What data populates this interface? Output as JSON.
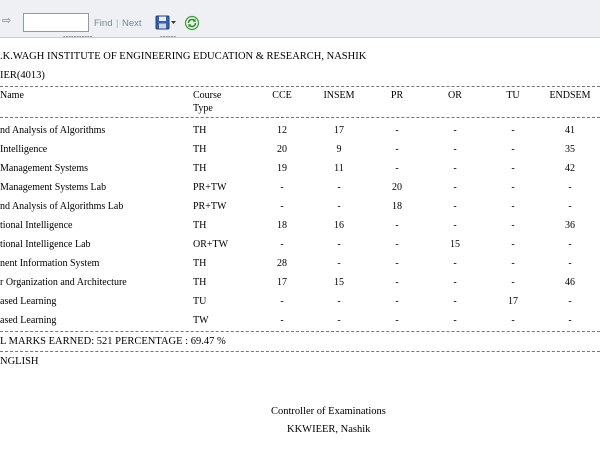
{
  "toolbar": {
    "nav_glyph": "⇨",
    "search_value": "",
    "search_placeholder": "",
    "find_label": "Find",
    "separator": "|",
    "next_label": "Next",
    "cut_text_1": "-----------",
    "cut_text_2": "------"
  },
  "header": {
    "institute": ".K.WAGH INSTITUTE OF ENGINEERING EDUCATION & RESEARCH, NASHIK",
    "semester": "IER(4013)"
  },
  "table": {
    "headers": {
      "name": "Name",
      "course_type_line1": "Course",
      "course_type_line2": "Type",
      "cce": "CCE",
      "insem": "INSEM",
      "pr": "PR",
      "or": "OR",
      "tu": "TU",
      "endsem": "ENDSEM"
    },
    "rows": [
      {
        "name": "nd Analysis of Algorithms",
        "type": "TH",
        "cce": "12",
        "insem": "17",
        "pr": "-",
        "or": "-",
        "tu": "-",
        "endsem": "41"
      },
      {
        "name": " Intelligence",
        "type": "TH",
        "cce": "20",
        "insem": "9",
        "pr": "-",
        "or": "-",
        "tu": "-",
        "endsem": "35"
      },
      {
        "name": " Management Systems",
        "type": "TH",
        "cce": "19",
        "insem": "11",
        "pr": "-",
        "or": "-",
        "tu": "-",
        "endsem": "42"
      },
      {
        "name": " Management Systems Lab",
        "type": "PR+TW",
        "cce": "-",
        "insem": "-",
        "pr": "20",
        "or": "-",
        "tu": "-",
        "endsem": "-"
      },
      {
        "name": "nd Analysis of Algorithms Lab",
        "type": "PR+TW",
        "cce": "-",
        "insem": "-",
        "pr": "18",
        "or": "-",
        "tu": "-",
        "endsem": "-"
      },
      {
        "name": "tional Intelligence",
        "type": "TH",
        "cce": "18",
        "insem": "16",
        "pr": "-",
        "or": "-",
        "tu": "-",
        "endsem": "36"
      },
      {
        "name": "tional Intelligence Lab",
        "type": "OR+TW",
        "cce": "-",
        "insem": "-",
        "pr": "-",
        "or": "15",
        "tu": "-",
        "endsem": "-"
      },
      {
        "name": "nent Information System",
        "type": "TH",
        "cce": "28",
        "insem": "-",
        "pr": "-",
        "or": "-",
        "tu": "-",
        "endsem": "-"
      },
      {
        "name": "r Organization and Architecture",
        "type": "TH",
        "cce": "17",
        "insem": "15",
        "pr": "-",
        "or": "-",
        "tu": "-",
        "endsem": "46"
      },
      {
        "name": "ased Learning",
        "type": "TU",
        "cce": "-",
        "insem": "-",
        "pr": "-",
        "or": "-",
        "tu": "17",
        "endsem": "-"
      },
      {
        "name": "ased Learning",
        "type": "TW",
        "cce": "-",
        "insem": "-",
        "pr": "-",
        "or": "-",
        "tu": "-",
        "endsem": "-"
      }
    ]
  },
  "footer": {
    "marks_line": "L MARKS  EARNED: 521   PERCENTAGE : 69.47 %",
    "language": "NGLISH",
    "controller_title": "Controller of Examinations",
    "controller_place": "KKWIEER, Nashik"
  }
}
